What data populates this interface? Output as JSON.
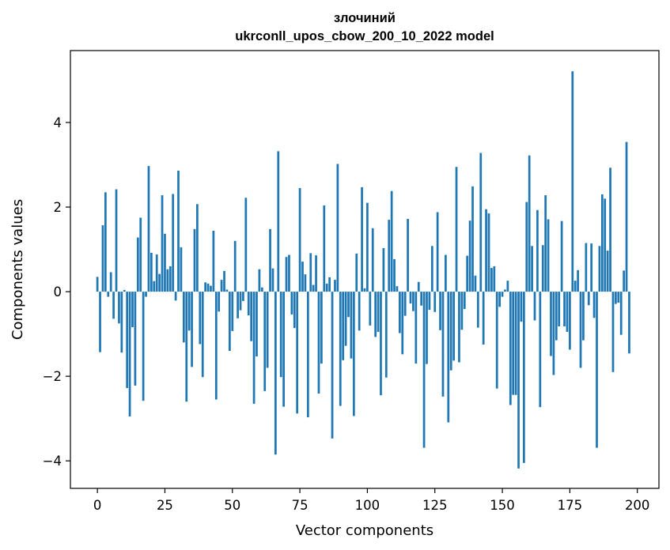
{
  "chart_data": {
    "type": "bar",
    "title_lines": [
      "злочиний",
      "ukrconll_upos_cbow_200_10_2022 model"
    ],
    "xlabel": "Vector components",
    "ylabel": "Components values",
    "xlim": [
      -10,
      208
    ],
    "ylim": [
      -4.65,
      5.7
    ],
    "xticks": [
      0,
      25,
      50,
      75,
      100,
      125,
      150,
      175,
      200
    ],
    "yticks": [
      -4,
      -2,
      0,
      2,
      4
    ],
    "ytick_labels": [
      "−4",
      "−2",
      "0",
      "2",
      "4"
    ],
    "grid": false,
    "legend": "none",
    "color": "#1f77b4",
    "values": [
      0.35,
      -1.43,
      1.57,
      2.35,
      -0.12,
      0.46,
      -0.64,
      2.42,
      -0.75,
      -1.44,
      0.04,
      -2.28,
      -2.95,
      -0.84,
      -2.22,
      1.28,
      1.75,
      -2.58,
      -0.12,
      2.97,
      0.92,
      0.25,
      0.88,
      0.42,
      2.28,
      1.37,
      0.53,
      0.6,
      2.31,
      -0.21,
      2.86,
      1.05,
      -1.2,
      -2.6,
      -0.92,
      -1.78,
      1.48,
      2.07,
      -1.24,
      -2.02,
      0.22,
      0.19,
      0.14,
      1.44,
      -2.55,
      -0.47,
      0.28,
      0.49,
      0.05,
      -1.4,
      -0.93,
      1.2,
      -0.63,
      -0.44,
      -0.22,
      2.22,
      -0.56,
      -1.17,
      -2.65,
      -1.53,
      0.53,
      0.1,
      -2.35,
      -1.8,
      1.48,
      0.55,
      -3.85,
      3.32,
      -2.02,
      -2.72,
      0.82,
      0.87,
      -0.54,
      -0.86,
      -2.88,
      2.45,
      0.71,
      0.41,
      -2.97,
      0.91,
      0.16,
      0.86,
      -2.41,
      -1.7,
      2.04,
      0.19,
      0.34,
      -3.47,
      0.28,
      3.02,
      -2.7,
      -1.62,
      -1.28,
      -0.6,
      -1.58,
      -2.94,
      0.9,
      -0.92,
      2.47,
      0.08,
      2.1,
      -0.8,
      1.5,
      -1.07,
      -0.95,
      -2.45,
      1.03,
      -2.03,
      1.7,
      2.38,
      0.77,
      0.13,
      -0.98,
      -1.48,
      -0.57,
      1.72,
      -0.28,
      -0.46,
      -1.7,
      0.23,
      -0.33,
      -3.69,
      -1.71,
      -0.43,
      1.08,
      -0.48,
      1.88,
      -0.91,
      -2.48,
      0.87,
      -3.09,
      -1.86,
      -1.63,
      2.95,
      -1.67,
      -0.9,
      -0.41,
      0.85,
      1.68,
      2.49,
      0.38,
      -0.85,
      3.28,
      -1.25,
      1.95,
      1.85,
      0.56,
      0.6,
      -2.29,
      -0.36,
      -0.12,
      0.05,
      0.26,
      -2.68,
      -2.44,
      -2.44,
      -4.18,
      -0.71,
      -4.05,
      2.12,
      3.22,
      1.08,
      -0.68,
      1.93,
      -2.73,
      1.1,
      2.28,
      1.71,
      -1.52,
      -1.97,
      -1.15,
      -0.82,
      1.67,
      -0.82,
      -0.95,
      -1.37,
      5.21,
      0.26,
      0.51,
      -1.8,
      -1.15,
      1.15,
      -0.32,
      1.14,
      -0.62,
      -3.69,
      1.08,
      2.3,
      2.2,
      0.97,
      2.93,
      -1.9,
      -0.29,
      -0.26,
      -1.02,
      0.5,
      3.54,
      -1.46
    ]
  }
}
